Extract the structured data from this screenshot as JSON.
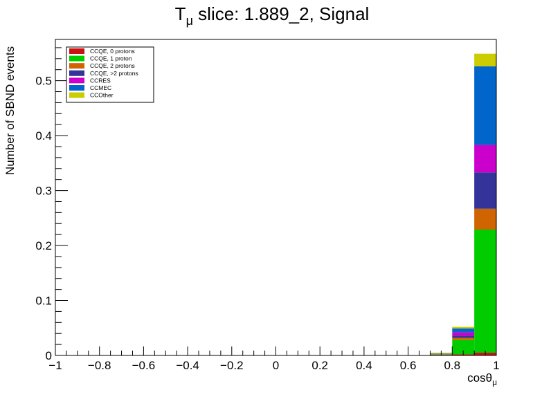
{
  "chart_data": {
    "type": "bar",
    "stacked": true,
    "title": {
      "main": "T",
      "sub": "μ",
      "rest": " slice: 1.889_2, Signal"
    },
    "xlabel": {
      "main": "cosθ",
      "sub": "μ"
    },
    "ylabel": "Number of SBND events",
    "xlim": [
      -1,
      1
    ],
    "ylim": [
      0,
      0.575
    ],
    "xticks": [
      "−1",
      "−0.8",
      "−0.6",
      "−0.4",
      "−0.2",
      "0",
      "0.2",
      "0.4",
      "0.6",
      "0.8",
      "1"
    ],
    "xtick_values": [
      -1,
      -0.8,
      -0.6,
      -0.4,
      -0.2,
      0,
      0.2,
      0.4,
      0.6,
      0.8,
      1
    ],
    "yticks": [
      "0",
      "0.1",
      "0.2",
      "0.3",
      "0.4",
      "0.5"
    ],
    "ytick_values": [
      0,
      0.1,
      0.2,
      0.3,
      0.4,
      0.5
    ],
    "bin_edges": [
      0.6,
      0.7,
      0.8,
      0.9,
      1.0
    ],
    "series": [
      {
        "name": "CCQE, 0 protons",
        "color": "#cc1111",
        "values": [
          0.0,
          0.0005,
          0.002,
          0.005
        ]
      },
      {
        "name": "CCQE, 1 proton",
        "color": "#00cc00",
        "values": [
          0.0,
          0.001,
          0.026,
          0.224
        ]
      },
      {
        "name": "CCQE, 2 protons",
        "color": "#d06400",
        "values": [
          0.0,
          0.0005,
          0.004,
          0.038
        ]
      },
      {
        "name": "CCQE, >2 protons",
        "color": "#333399",
        "values": [
          0.0,
          0.0003,
          0.004,
          0.066
        ]
      },
      {
        "name": "CCRES",
        "color": "#cc00cc",
        "values": [
          0.0,
          0.0005,
          0.006,
          0.05
        ]
      },
      {
        "name": "CCMEC",
        "color": "#0066cc",
        "values": [
          0.0,
          0.0007,
          0.007,
          0.143
        ]
      },
      {
        "name": "CCOther",
        "color": "#cccc00",
        "values": [
          0.0,
          0.0015,
          0.003,
          0.023
        ]
      }
    ],
    "legend_position": "top-left",
    "grid": false
  }
}
